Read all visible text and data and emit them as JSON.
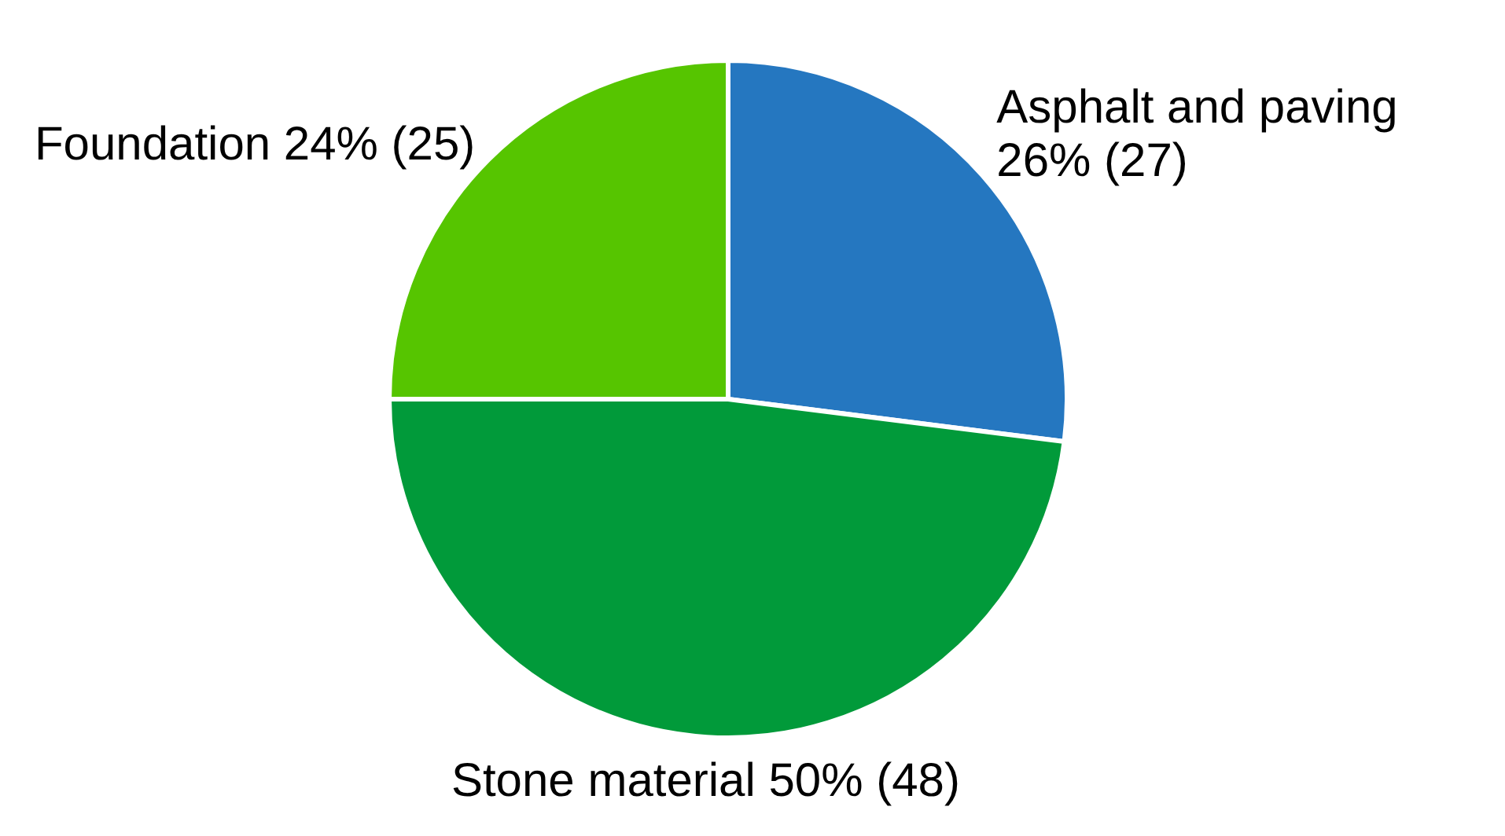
{
  "chart_data": {
    "type": "pie",
    "categories": [
      "Asphalt and paving",
      "Stone material",
      "Foundation"
    ],
    "values": [
      27,
      48,
      25
    ],
    "value_labels": [
      "26% (27)",
      "50% (48)",
      "24% (25)"
    ],
    "colors": [
      "#2577c0",
      "#019a3a",
      "#56c500"
    ],
    "legend": false
  }
}
